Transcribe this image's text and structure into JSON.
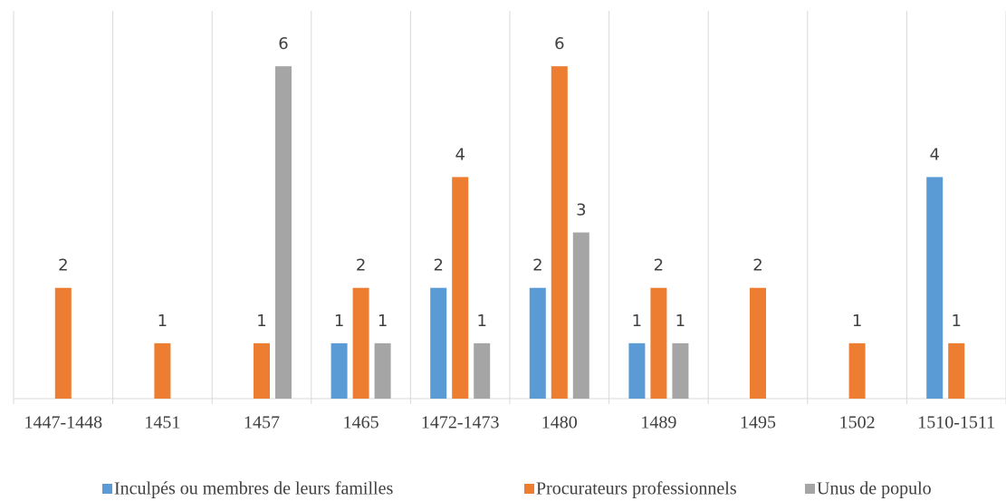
{
  "chart_data": {
    "type": "bar",
    "categories": [
      "1447-1448",
      "1451",
      "1457",
      "1465",
      "1472-1473",
      "1480",
      "1489",
      "1495",
      "1502",
      "1510-1511"
    ],
    "series": [
      {
        "name": "Inculpés ou membres de leurs familles",
        "color": "#5b9bd5",
        "values": [
          null,
          null,
          null,
          1,
          2,
          2,
          1,
          null,
          null,
          4
        ]
      },
      {
        "name": "Procurateurs professionnels",
        "color": "#ed7d31",
        "values": [
          2,
          1,
          1,
          2,
          4,
          6,
          2,
          2,
          1,
          1
        ]
      },
      {
        "name": "Unus de populo",
        "color": "#a5a5a5",
        "values": [
          null,
          null,
          6,
          1,
          1,
          3,
          1,
          null,
          null,
          null
        ]
      }
    ],
    "ylim": [
      0,
      7
    ],
    "legend": "bottom"
  }
}
